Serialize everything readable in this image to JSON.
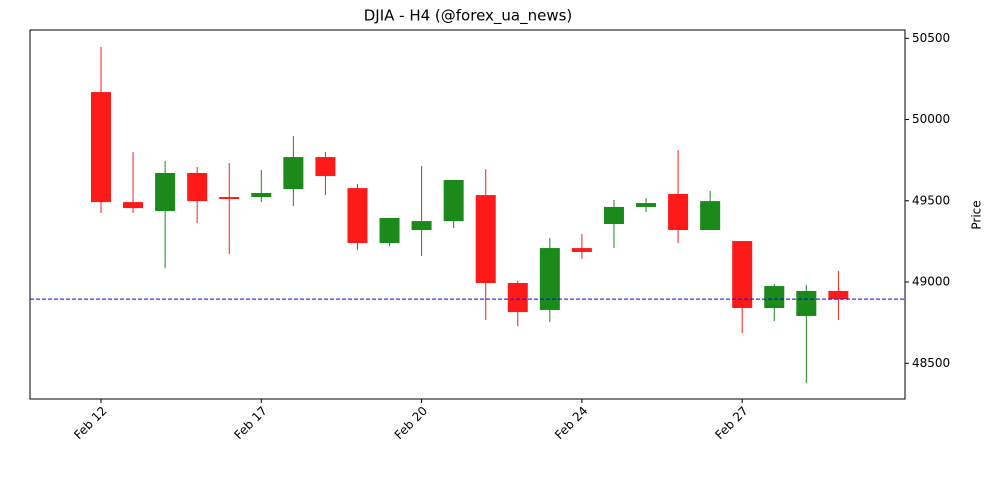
{
  "chart_data": {
    "type": "candlestick",
    "title": "DJIA - H4 (@forex_ua_news)",
    "y_label": "Price",
    "categories": [
      "Feb 12",
      null,
      null,
      null,
      null,
      "Feb 17",
      null,
      null,
      null,
      null,
      "Feb 20",
      null,
      null,
      null,
      null,
      "Feb 24",
      null,
      null,
      null,
      null,
      "Feb 27",
      null,
      null,
      null
    ],
    "open": [
      50169,
      49492,
      49437,
      49671,
      49523,
      49523,
      49572,
      49769,
      49578,
      49240,
      49320,
      49375,
      49535,
      48994,
      48828,
      49209,
      49357,
      49462,
      49542,
      49320,
      49252,
      48840,
      48791,
      48945
    ],
    "high": [
      50446,
      49800,
      49745,
      49708,
      49732,
      49689,
      49898,
      49800,
      49603,
      49394,
      49714,
      49628,
      49695,
      49006,
      49271,
      49295,
      49505,
      49517,
      49812,
      49560,
      49252,
      48988,
      48982,
      49068
    ],
    "low": [
      49425,
      49425,
      49086,
      49363,
      49172,
      49492,
      49468,
      49535,
      49197,
      49222,
      49160,
      49332,
      48766,
      48729,
      48754,
      49142,
      49209,
      49431,
      49240,
      49320,
      48686,
      48760,
      48378,
      48766
    ],
    "close": [
      49492,
      49455,
      49671,
      49498,
      49511,
      49548,
      49769,
      49652,
      49240,
      49394,
      49375,
      49628,
      48994,
      48815,
      49209,
      49185,
      49462,
      49486,
      49320,
      49498,
      48840,
      48975,
      48945,
      48895
    ],
    "up_color": "#1a8a1a",
    "down_color": "#ff1a1a",
    "hline": 48895,
    "hline_color": "#0000ff",
    "ylim": [
      48280,
      50551
    ],
    "yticks": [
      48500,
      49000,
      49500,
      50000,
      50500
    ]
  }
}
